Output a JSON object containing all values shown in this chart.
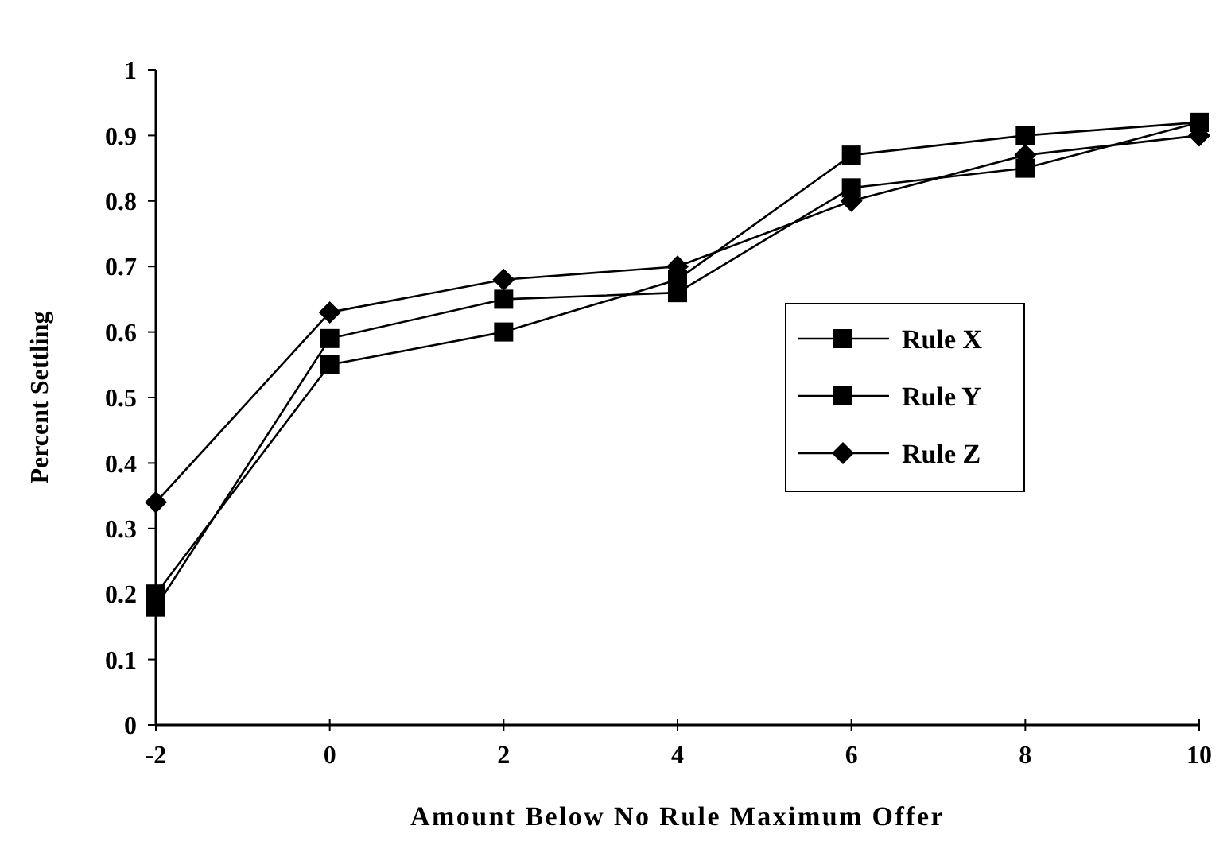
{
  "chart_data": {
    "type": "line",
    "xlabel": "Amount Below No Rule Maximum Offer",
    "ylabel": "Percent Settling",
    "x": [
      -2,
      0,
      2,
      4,
      6,
      8,
      10
    ],
    "xlim": [
      -2,
      10
    ],
    "xticks": [
      -2,
      0,
      2,
      4,
      6,
      8,
      10
    ],
    "ylim": [
      0,
      1
    ],
    "yticks": [
      0,
      0.1,
      0.2,
      0.3,
      0.4,
      0.5,
      0.6,
      0.7,
      0.8,
      0.9,
      1
    ],
    "grid": false,
    "legend": "right",
    "series": [
      {
        "name": "Rule X",
        "color": "#000000",
        "marker": "square",
        "values": [
          0.18,
          0.59,
          0.65,
          0.66,
          0.82,
          0.85,
          0.92
        ]
      },
      {
        "name": "Rule Y",
        "color": "#000000",
        "marker": "square",
        "values": [
          0.2,
          0.55,
          0.6,
          0.68,
          0.87,
          0.9,
          0.92
        ]
      },
      {
        "name": "Rule Z",
        "color": "#000000",
        "marker": "diamond",
        "values": [
          0.34,
          0.63,
          0.68,
          0.7,
          0.8,
          0.87,
          0.9
        ]
      }
    ]
  }
}
